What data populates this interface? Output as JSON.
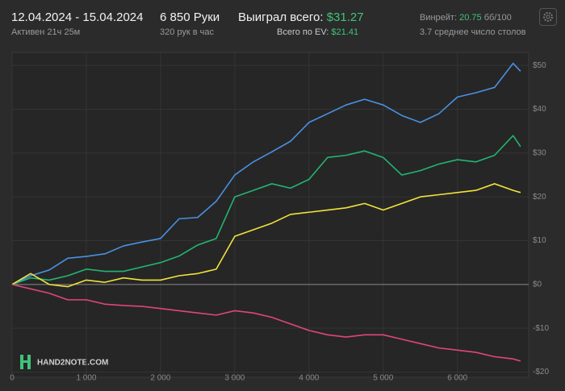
{
  "header": {
    "period": "12.04.2024 - 15.04.2024",
    "active": "Активен 21ч 25м",
    "hands": "6 850 Руки",
    "hands_per_hour": "320 рук в час",
    "won_label": "Выиграл всего:",
    "won_value": "$31.27",
    "ev_label": "Всего по EV:",
    "ev_value": "$21.41",
    "winrate_label": "Винрейт:",
    "winrate_value": "20.75",
    "winrate_unit": "бб/100",
    "tables": "3.7 среднее число столов"
  },
  "watermark": "HAND2NOTE.COM",
  "chart_data": {
    "type": "line",
    "x": [
      0,
      250,
      500,
      750,
      1000,
      1250,
      1500,
      1750,
      2000,
      2250,
      2500,
      2750,
      3000,
      3250,
      3500,
      3750,
      4000,
      4250,
      4500,
      4750,
      5000,
      5250,
      5500,
      5750,
      6000,
      6250,
      6500,
      6750,
      6850
    ],
    "series": [
      {
        "color": "#4a90e2",
        "values": [
          0,
          2,
          3.3,
          6,
          6.4,
          7,
          8.8,
          9.7,
          10.5,
          15,
          15.3,
          19,
          25,
          28,
          30.3,
          32.7,
          37,
          39,
          41,
          42.3,
          41,
          38.6,
          37,
          39,
          42.8,
          43.8,
          45,
          50.5,
          48.7
        ]
      },
      {
        "color": "#22b573",
        "values": [
          0,
          1.5,
          1,
          2,
          3.5,
          3,
          3,
          4,
          5,
          6.5,
          9,
          10.5,
          20,
          21.5,
          23,
          22,
          24,
          29,
          29.5,
          30.5,
          29,
          25,
          26,
          27.5,
          28.5,
          28,
          29.5,
          34,
          31.5
        ]
      },
      {
        "color": "#f2e33b",
        "values": [
          0,
          2.5,
          0,
          -0.5,
          1,
          0.5,
          1.5,
          1,
          1,
          2,
          2.5,
          3.5,
          11,
          12.5,
          14,
          16,
          16.5,
          17,
          17.5,
          18.5,
          17,
          18.5,
          20,
          20.5,
          21,
          21.5,
          23,
          21.5,
          21
        ]
      },
      {
        "color": "#e0457b",
        "values": [
          0,
          -1,
          -2,
          -3.5,
          -3.5,
          -4.5,
          -4.8,
          -5,
          -5.5,
          -6,
          -6.5,
          -7,
          -6,
          -6.5,
          -7.5,
          -9,
          -10.5,
          -11.5,
          -12,
          -11.5,
          -11.5,
          -12.5,
          -13.5,
          -14.5,
          -15,
          -15.5,
          -16.5,
          -17,
          -17.5
        ]
      }
    ],
    "xlim": [
      0,
      6960
    ],
    "xticks": [
      0,
      {
        "value": 1000,
        "label": "1 000"
      },
      {
        "value": 2000,
        "label": "2 000"
      },
      {
        "value": 3000,
        "label": "3 000"
      },
      {
        "value": 4000,
        "label": "4 000"
      },
      {
        "value": 5000,
        "label": "5 000"
      },
      {
        "value": 6000,
        "label": "6 000"
      }
    ],
    "ylim": [
      -21.2,
      53
    ],
    "yticks": [
      {
        "value": 50,
        "label": "$50"
      },
      {
        "value": 40,
        "label": "$40"
      },
      {
        "value": 30,
        "label": "$30"
      },
      {
        "value": 20,
        "label": "$20"
      },
      {
        "value": 10,
        "label": "$10"
      },
      {
        "value": 0,
        "label": "$0"
      },
      {
        "value": -10,
        "label": "-$10"
      },
      {
        "value": -20,
        "label": "-$20"
      }
    ],
    "grid": true
  }
}
